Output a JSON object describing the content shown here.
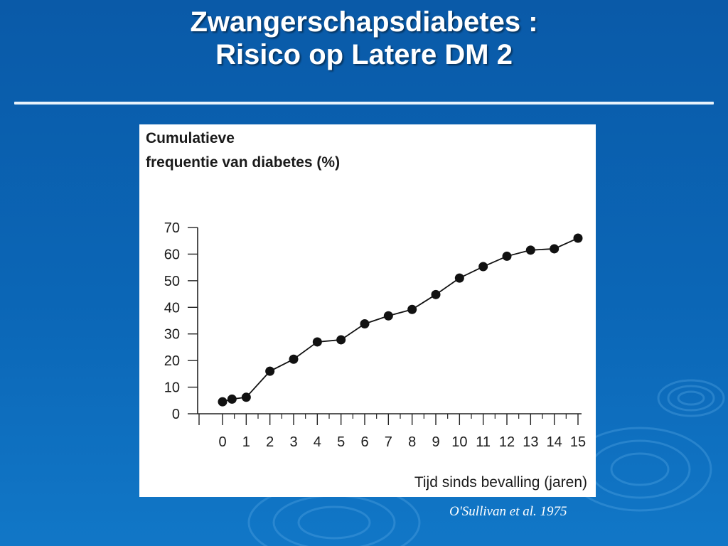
{
  "slide": {
    "title_line1": "Zwangerschapsdiabetes :",
    "title_line2": "Risico op Latere DM 2",
    "citation": "O'Sullivan et al. 1975"
  },
  "colors": {
    "background": "#0b66b6",
    "title_text": "#ffffff",
    "rule": "#e8f2fb",
    "chart_bg": "#ffffff",
    "series": "#111111"
  },
  "chart_data": {
    "type": "line",
    "ylabel_line1": "Cumulatieve",
    "ylabel_line2": "frequentie van diabetes (%)",
    "xlabel": "Tijd sinds bevalling (jaren)",
    "xticks": [
      0,
      1,
      2,
      3,
      4,
      5,
      6,
      7,
      8,
      9,
      10,
      11,
      12,
      13,
      14,
      15
    ],
    "yticks": [
      0,
      10,
      20,
      30,
      40,
      50,
      60,
      70
    ],
    "xlim": [
      -1,
      15
    ],
    "ylim": [
      0,
      70
    ],
    "grid": false,
    "series": [
      {
        "x": [
          0,
          0.4,
          1,
          2,
          3,
          4,
          5,
          6,
          7,
          8,
          9,
          10,
          11,
          12,
          13,
          14,
          15
        ],
        "y": [
          4.5,
          5.5,
          6.2,
          16,
          20.5,
          27,
          27.8,
          33.8,
          36.8,
          39.2,
          44.8,
          51,
          55.3,
          59.2,
          61.5,
          62,
          66
        ]
      }
    ]
  }
}
